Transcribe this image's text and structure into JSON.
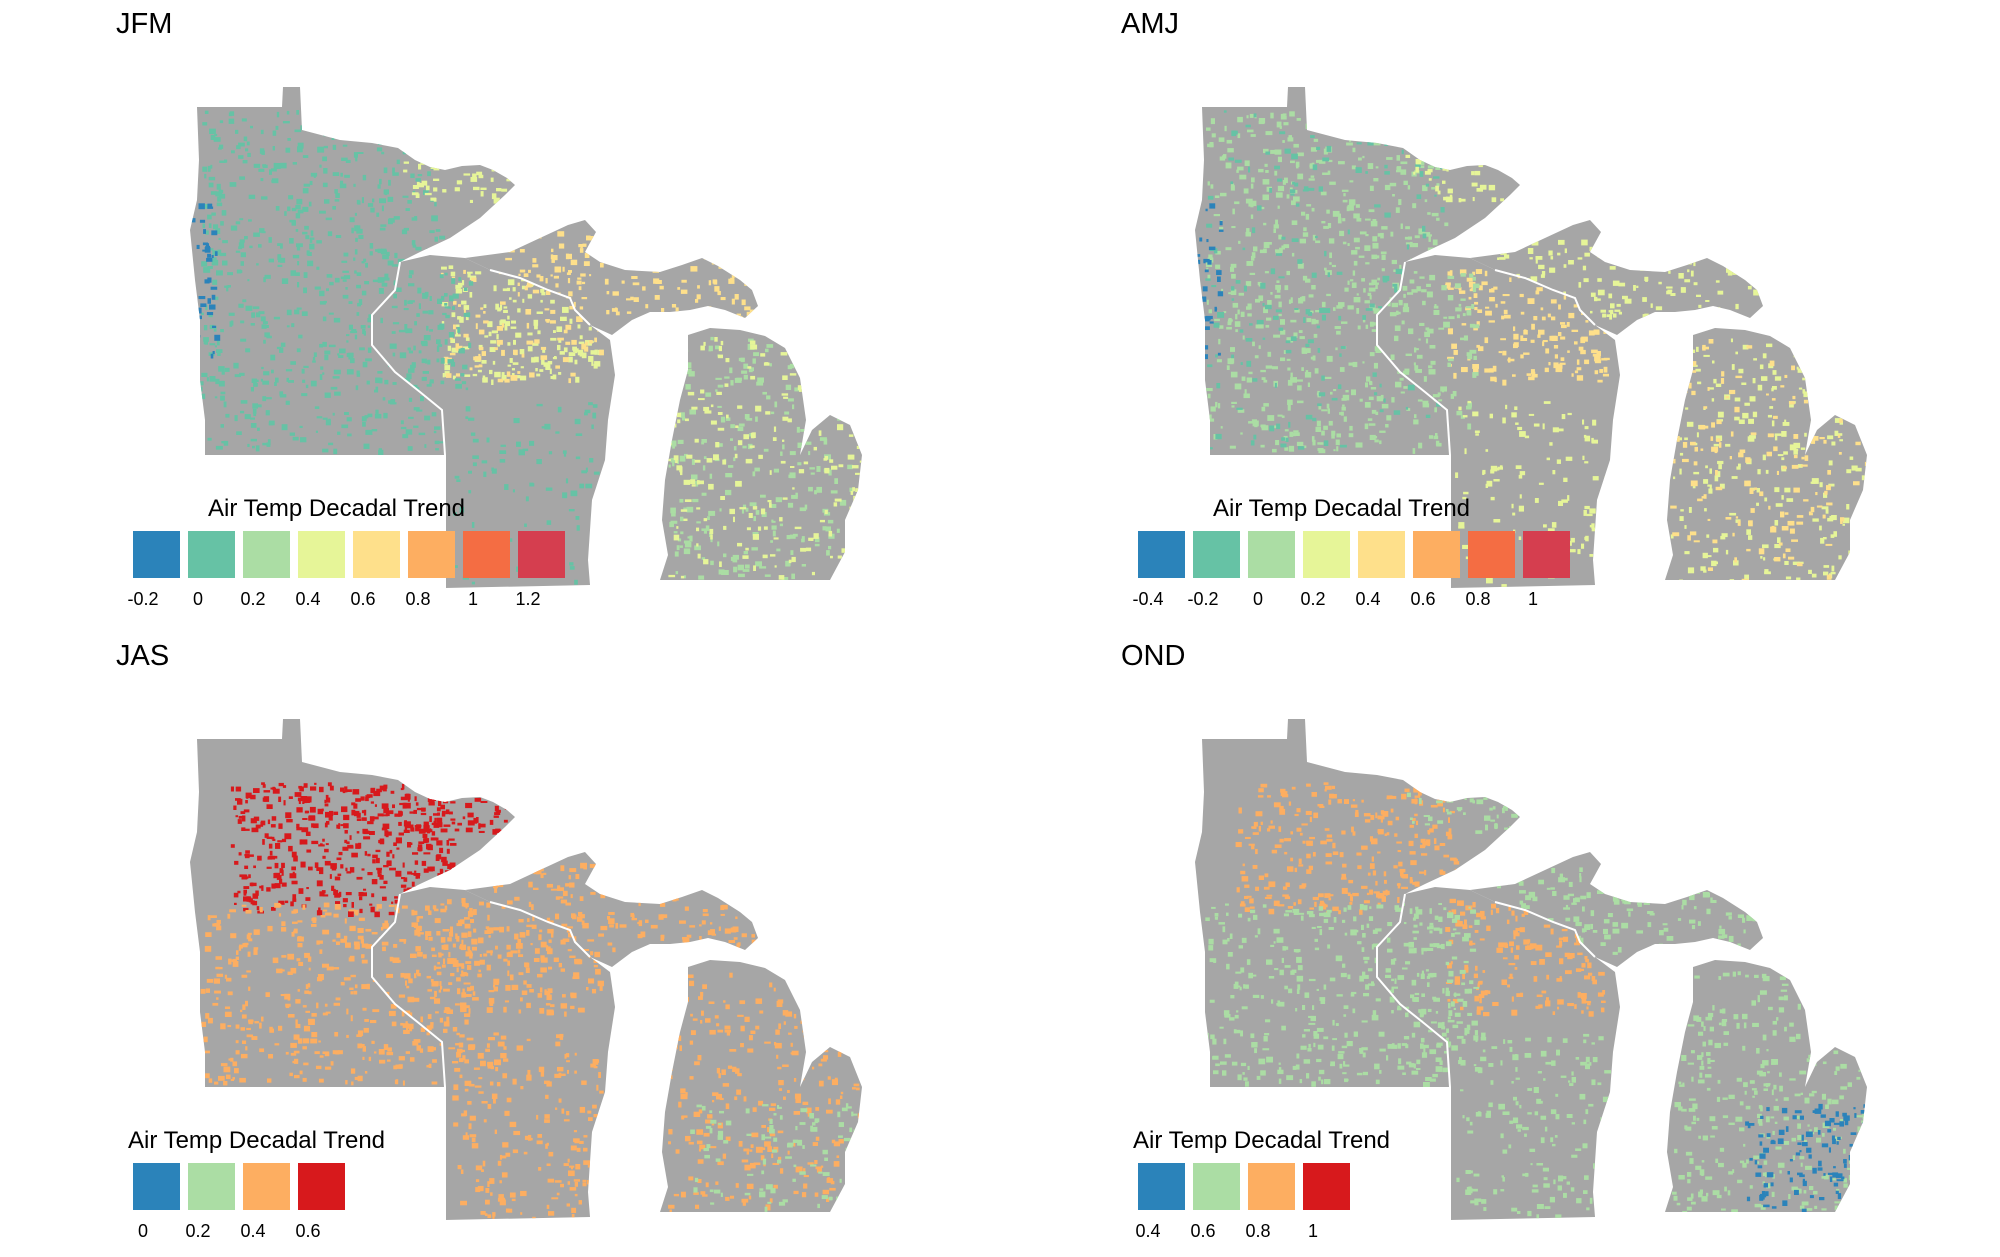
{
  "colors": {
    "land": "#a6a6a6",
    "border": "#ffffff",
    "water": "#ffffff"
  },
  "panels": [
    {
      "title": "JFM",
      "legend": {
        "title": "Air Temp Decadal Trend",
        "colors": [
          "#2b83ba",
          "#66c2a5",
          "#abdda4",
          "#e6f598",
          "#fee08b",
          "#fdae61",
          "#f46d43",
          "#d53e4f"
        ],
        "labels": [
          "-0.2",
          "0",
          "0.2",
          "0.4",
          "0.6",
          "0.8",
          "1",
          "1.2"
        ],
        "label_positions": [
          0,
          1,
          2,
          3,
          4,
          5,
          6,
          7
        ]
      },
      "regions": [
        {
          "area": "minnesota",
          "color_index": 1,
          "density": 0.28
        },
        {
          "area": "minnesota-arrowhead",
          "color_index": 3,
          "density": 0.3
        },
        {
          "area": "wisconsin-north",
          "color_index": 3,
          "density": 0.4
        },
        {
          "area": "wisconsin-north",
          "color_index": 4,
          "density": 0.2
        },
        {
          "area": "wisconsin-west",
          "color_index": 1,
          "density": 0.3
        },
        {
          "area": "wisconsin-south",
          "color_index": 1,
          "density": 0.12
        },
        {
          "area": "michigan-up",
          "color_index": 4,
          "density": 0.25
        },
        {
          "area": "michigan-lp",
          "color_index": 2,
          "density": 0.2
        },
        {
          "area": "michigan-lp",
          "color_index": 3,
          "density": 0.15
        },
        {
          "area": "minnesota-west-edge",
          "color_index": 0,
          "density": 0.3
        }
      ]
    },
    {
      "title": "AMJ",
      "legend": {
        "title": "Air Temp Decadal Trend",
        "colors": [
          "#2b83ba",
          "#66c2a5",
          "#abdda4",
          "#e6f598",
          "#fee08b",
          "#fdae61",
          "#f46d43",
          "#d53e4f"
        ],
        "labels": [
          "-0.4",
          "-0.2",
          "0",
          "0.2",
          "0.4",
          "0.6",
          "0.8",
          "1"
        ],
        "label_positions": [
          0,
          1,
          2,
          3,
          4,
          5,
          6,
          7
        ]
      },
      "regions": [
        {
          "area": "minnesota",
          "color_index": 2,
          "density": 0.28
        },
        {
          "area": "minnesota",
          "color_index": 1,
          "density": 0.08
        },
        {
          "area": "minnesota-arrowhead",
          "color_index": 3,
          "density": 0.3
        },
        {
          "area": "wisconsin-north",
          "color_index": 4,
          "density": 0.35
        },
        {
          "area": "wisconsin-west",
          "color_index": 2,
          "density": 0.3
        },
        {
          "area": "wisconsin-south",
          "color_index": 3,
          "density": 0.15
        },
        {
          "area": "michigan-up",
          "color_index": 3,
          "density": 0.25
        },
        {
          "area": "michigan-lp",
          "color_index": 3,
          "density": 0.18
        },
        {
          "area": "michigan-lp",
          "color_index": 4,
          "density": 0.12
        },
        {
          "area": "minnesota-west-edge",
          "color_index": 0,
          "density": 0.3
        }
      ]
    },
    {
      "title": "JAS",
      "legend": {
        "title": "Air Temp Decadal Trend",
        "colors": [
          "#2b83ba",
          "#abdda4",
          "#fdae61",
          "#d7191c"
        ],
        "labels": [
          "0",
          "0.2",
          "0.4",
          "0.6"
        ],
        "label_positions": [
          0,
          1,
          2,
          3
        ]
      },
      "regions": [
        {
          "area": "minnesota-north",
          "color_index": 3,
          "density": 0.55
        },
        {
          "area": "minnesota-arrowhead",
          "color_index": 3,
          "density": 0.45
        },
        {
          "area": "minnesota-south",
          "color_index": 2,
          "density": 0.3
        },
        {
          "area": "wisconsin-north",
          "color_index": 2,
          "density": 0.4
        },
        {
          "area": "wisconsin-west",
          "color_index": 2,
          "density": 0.4
        },
        {
          "area": "wisconsin-south",
          "color_index": 2,
          "density": 0.25
        },
        {
          "area": "michigan-up",
          "color_index": 2,
          "density": 0.3
        },
        {
          "area": "michigan-lp",
          "color_index": 2,
          "density": 0.2
        },
        {
          "area": "michigan-lp-south",
          "color_index": 1,
          "density": 0.2
        }
      ]
    },
    {
      "title": "OND",
      "legend": {
        "title": "Air Temp Decadal Trend",
        "colors": [
          "#2b83ba",
          "#abdda4",
          "#fdae61",
          "#d7191c"
        ],
        "labels": [
          "0.4",
          "0.6",
          "0.8",
          "1"
        ],
        "label_positions": [
          0,
          1,
          2,
          3
        ]
      },
      "regions": [
        {
          "area": "minnesota-north",
          "color_index": 2,
          "density": 0.35
        },
        {
          "area": "minnesota-south",
          "color_index": 1,
          "density": 0.3
        },
        {
          "area": "minnesota-arrowhead",
          "color_index": 1,
          "density": 0.3
        },
        {
          "area": "wisconsin-north",
          "color_index": 2,
          "density": 0.35
        },
        {
          "area": "wisconsin-west",
          "color_index": 1,
          "density": 0.4
        },
        {
          "area": "wisconsin-south",
          "color_index": 1,
          "density": 0.2
        },
        {
          "area": "michigan-up",
          "color_index": 1,
          "density": 0.3
        },
        {
          "area": "michigan-lp",
          "color_index": 1,
          "density": 0.25
        },
        {
          "area": "michigan-lp-southeast",
          "color_index": 0,
          "density": 0.3
        }
      ]
    }
  ]
}
